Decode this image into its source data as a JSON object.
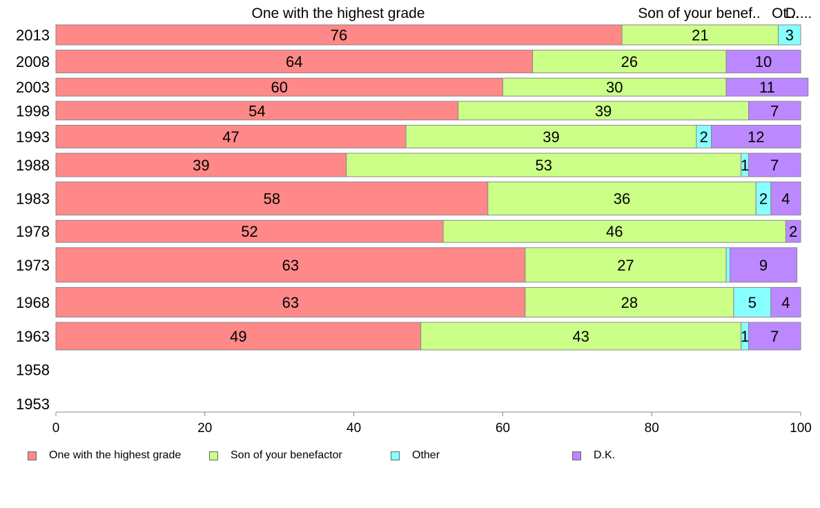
{
  "chart_data": {
    "type": "bar",
    "orientation": "horizontal",
    "stacked": true,
    "categories": [
      "2013",
      "2008",
      "2003",
      "1998",
      "1993",
      "1988",
      "1983",
      "1978",
      "1973",
      "1968",
      "1963",
      "1958",
      "1953"
    ],
    "series": [
      {
        "name": "One with the highest grade",
        "color": "#FF8888",
        "values": [
          76,
          64,
          60,
          54,
          47,
          39,
          58,
          52,
          63,
          63,
          49,
          null,
          null
        ]
      },
      {
        "name": "Son of your benefactor",
        "color": "#CCFF88",
        "values": [
          21,
          26,
          30,
          39,
          39,
          53,
          36,
          46,
          27,
          28,
          43,
          null,
          null
        ]
      },
      {
        "name": "Other",
        "color": "#88FFFF",
        "values": [
          3,
          0,
          0,
          0,
          2,
          1,
          2,
          0,
          0.5,
          5,
          1,
          null,
          null
        ]
      },
      {
        "name": "D.K.",
        "color": "#BB88FF",
        "values": [
          0,
          10,
          11,
          7,
          12,
          7,
          4,
          2,
          9,
          4,
          7,
          null,
          null
        ]
      }
    ],
    "data_labels": [
      [
        "76",
        "21",
        "3",
        ""
      ],
      [
        "64",
        "26",
        "",
        "10"
      ],
      [
        "60",
        "30",
        "",
        "11"
      ],
      [
        "54",
        "39",
        "",
        "7"
      ],
      [
        "47",
        "39",
        "2",
        "12"
      ],
      [
        "39",
        "53",
        "1",
        "7"
      ],
      [
        "58",
        "36",
        "2",
        "4"
      ],
      [
        "52",
        "46",
        "",
        "2"
      ],
      [
        "63",
        "27",
        "",
        "9"
      ],
      [
        "63",
        "28",
        "5",
        "4"
      ],
      [
        "49",
        "43",
        "1",
        "7"
      ],
      [
        "",
        "",
        "",
        ""
      ],
      [
        "",
        "",
        "",
        ""
      ]
    ],
    "row_weights": [
      29,
      33,
      26,
      27,
      33,
      34,
      48,
      32,
      50,
      43,
      40,
      0,
      0
    ],
    "column_headers": [
      "One with the highest grade",
      "Son of your benef..",
      "Ot...",
      "D...."
    ],
    "xlim": [
      0,
      100
    ],
    "xticks": [
      0,
      20,
      40,
      60,
      80,
      100
    ],
    "xlabel": "",
    "ylabel": "",
    "title": "",
    "grid": false,
    "legend_position": "bottom"
  }
}
